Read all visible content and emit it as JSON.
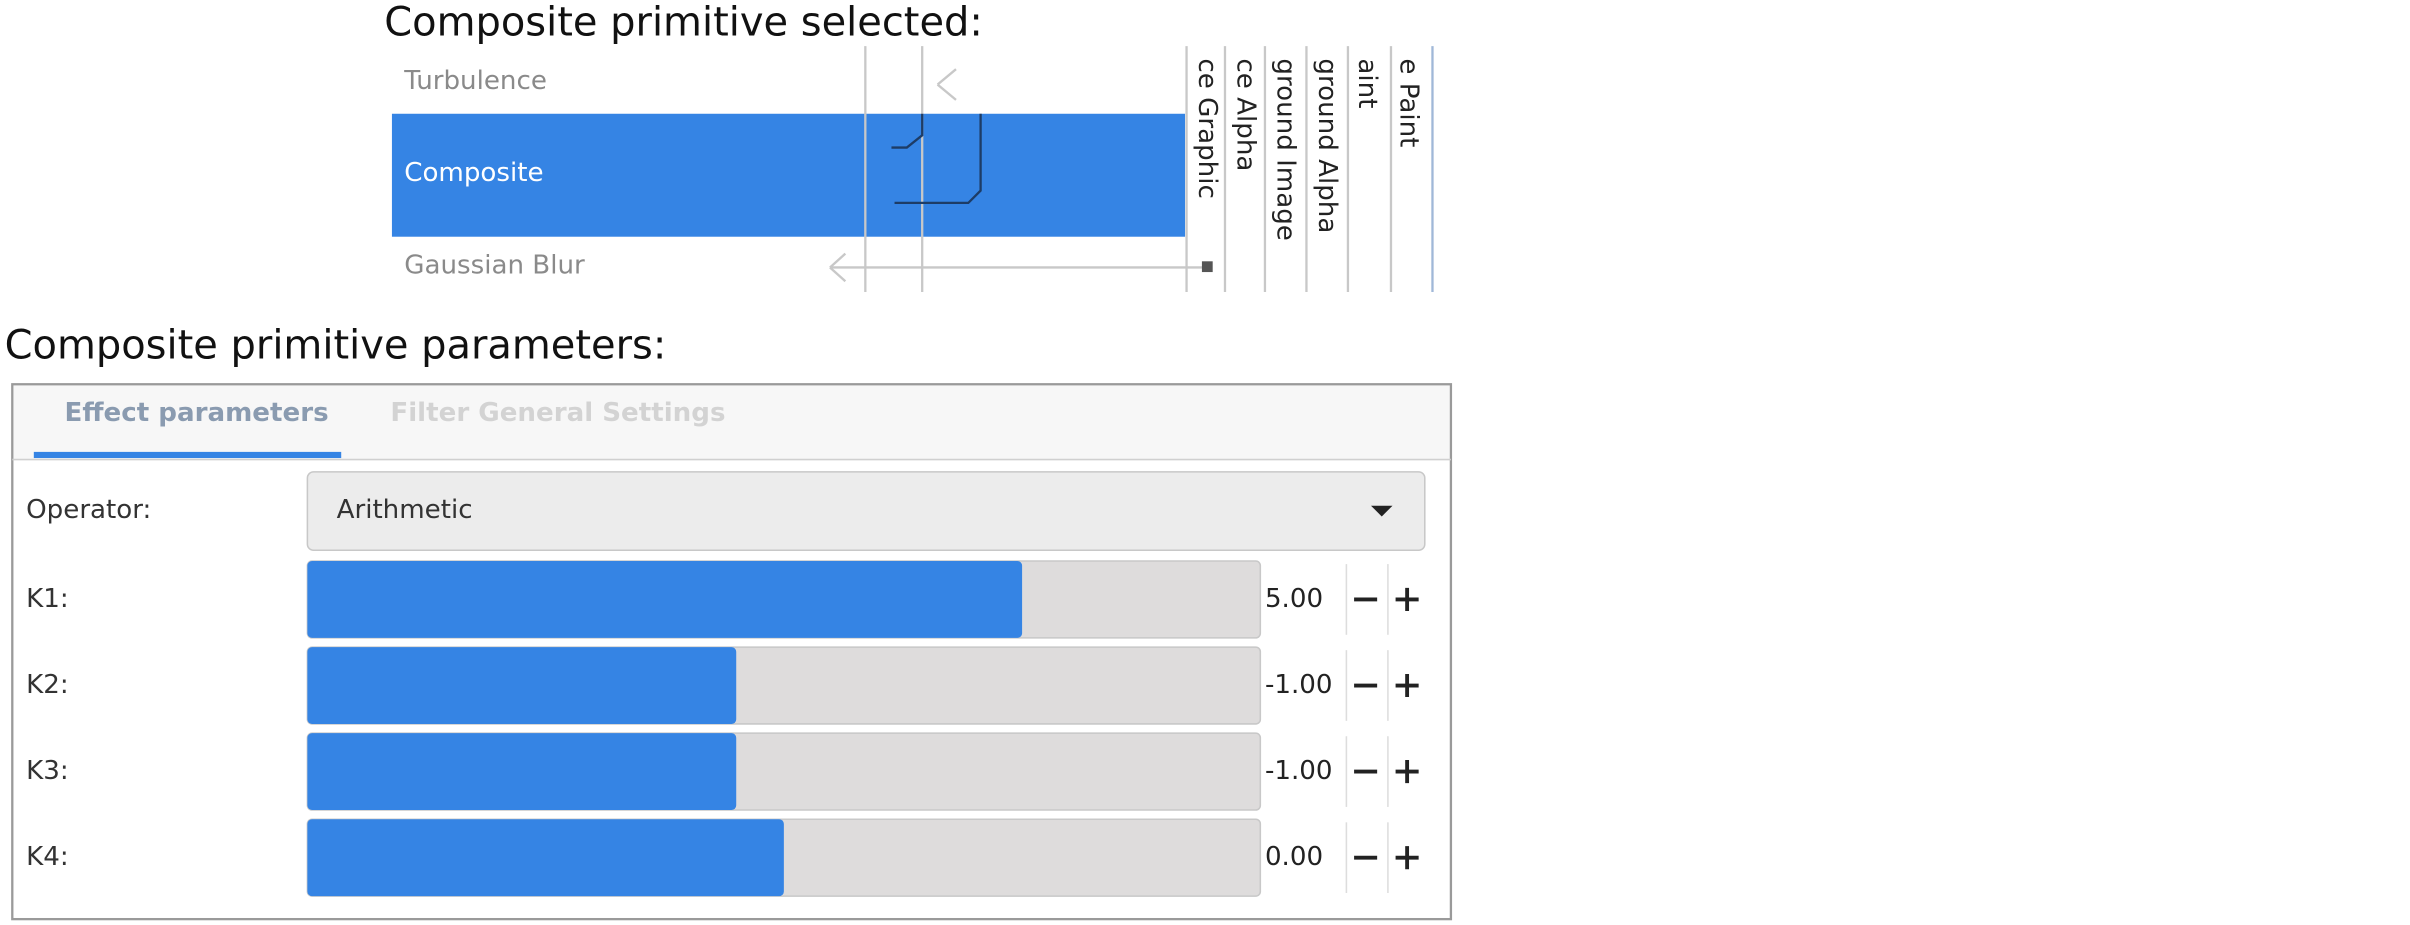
{
  "top_panel": {
    "title": "Composite primitive selected:",
    "primitives": [
      "Turbulence",
      "Composite",
      "Gaussian Blur"
    ],
    "inputs": [
      "ce Graphic",
      "ce Alpha",
      "ground Image",
      "ground Alpha",
      "aint",
      "e Paint"
    ]
  },
  "parameters": {
    "title": "Composite primitive parameters:",
    "tabs": [
      "Effect parameters",
      "Filter General Settings"
    ],
    "operator": {
      "label": "Operator:",
      "value": "Arithmetic"
    },
    "slider_range": [
      -10,
      10
    ],
    "sliders": [
      {
        "label": "K1:",
        "value": 5,
        "value_label": "5.00"
      },
      {
        "label": "K2:",
        "value": -1,
        "value_label": "-1.00"
      },
      {
        "label": "K3:",
        "value": -1,
        "value_label": "-1.00"
      },
      {
        "label": "K4:",
        "value": 0,
        "value_label": "0.00"
      }
    ]
  }
}
